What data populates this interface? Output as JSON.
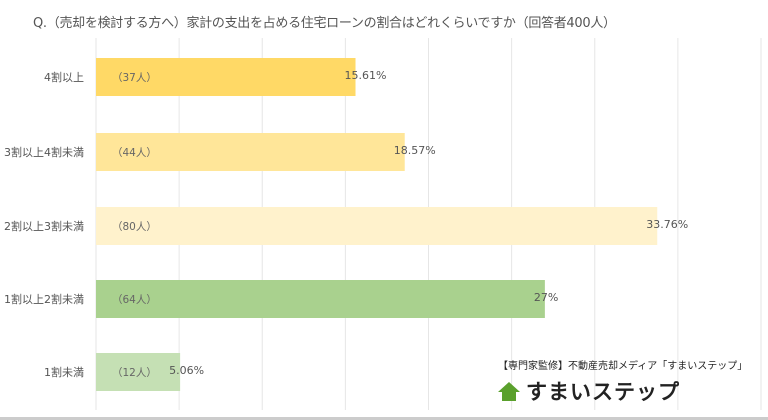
{
  "chart_data": {
    "type": "bar",
    "orientation": "horizontal",
    "title": "Q.（売却を検討する方へ）家計の支出を占める住宅ローンの割合はどれくらいですか（回答者400人）",
    "categories": [
      "4割以上",
      "3割以上4割未満",
      "2割以上3割未満",
      "1割以上2割未満",
      "1割未満"
    ],
    "values": [
      15.61,
      18.57,
      33.76,
      27,
      5.06
    ],
    "value_labels": [
      "15.61%",
      "18.57%",
      "33.76%",
      "27%",
      "5.06%"
    ],
    "count_labels": [
      "（37人）",
      "（44人）",
      "（80人）",
      "（64人）",
      "（12人）"
    ],
    "colors": [
      "#FFD966",
      "#FFE699",
      "#FFF2CC",
      "#A9D18E",
      "#C5E0B4"
    ],
    "xlim": [
      0,
      40
    ],
    "grid_step": 5,
    "grid": true,
    "gridline_color": "#e6e6e6"
  },
  "brand": {
    "subtitle": "【専門家監修】不動産売却メディア「すまいステップ」",
    "name": "すまいステップ",
    "icon": "house-icon",
    "icon_color": "#5aa02c"
  }
}
